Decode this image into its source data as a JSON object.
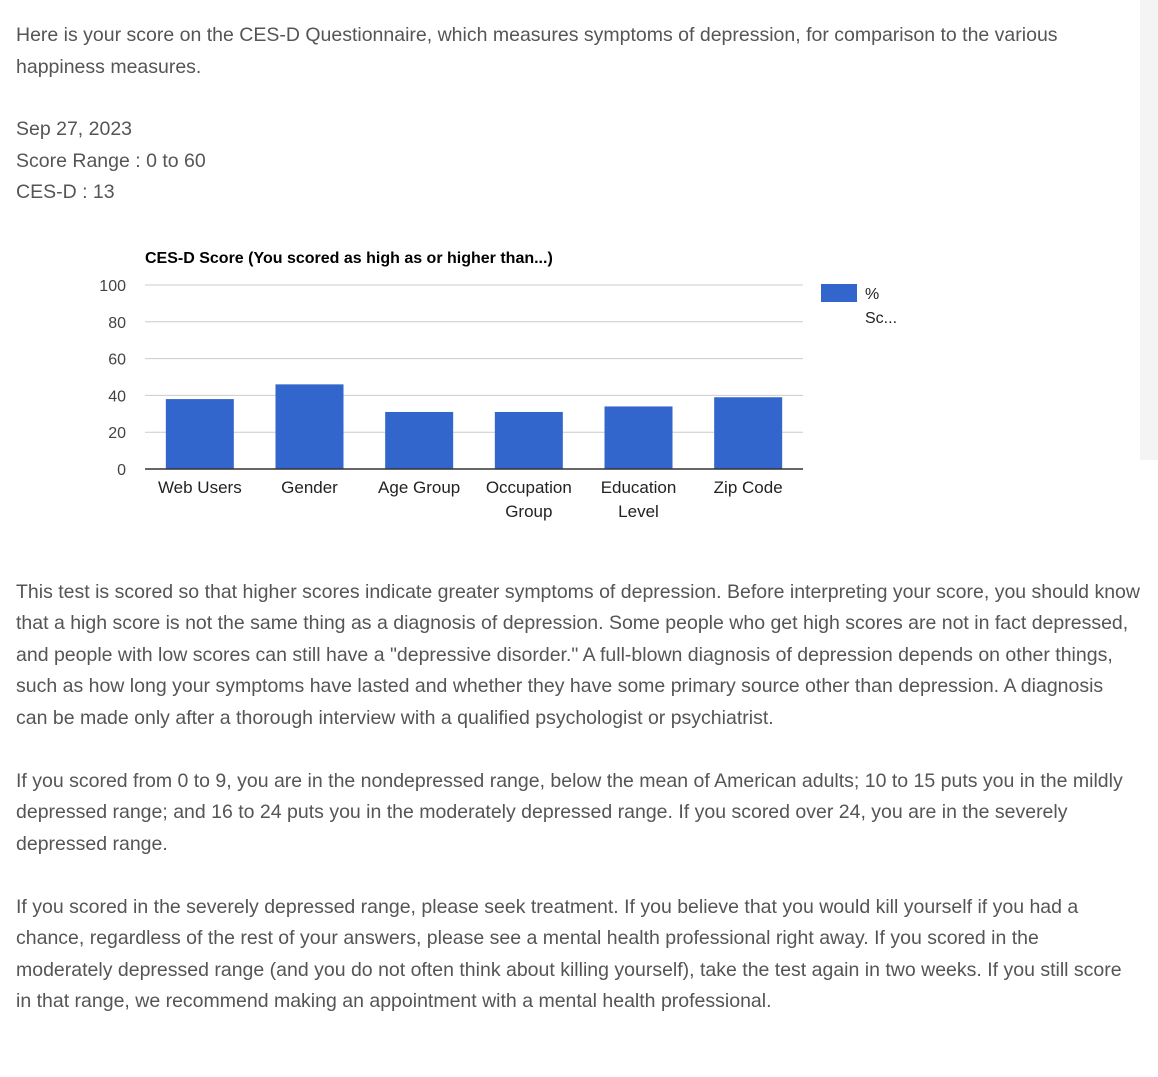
{
  "intro_text": "Here is your score on the CES-D Questionnaire, which measures symptoms of depression, for comparison to the various happiness measures.",
  "result": {
    "date": "Sep 27, 2023",
    "score_range": "Score Range : 0 to 60",
    "score": "CES-D : 13"
  },
  "chart_data": {
    "type": "bar",
    "title": "CES-D Score (You scored as high as or higher than...)",
    "categories": [
      "Web Users",
      "Gender",
      "Age Group",
      "Occupation Group",
      "Education Level",
      "Zip Code"
    ],
    "category_lines": [
      [
        "Web Users"
      ],
      [
        "Gender"
      ],
      [
        "Age Group"
      ],
      [
        "Occupation",
        "Group"
      ],
      [
        "Education",
        "Level"
      ],
      [
        "Zip Code"
      ]
    ],
    "series": [
      {
        "name": "% Sc...",
        "values": [
          38,
          46,
          31,
          31,
          34,
          39
        ]
      }
    ],
    "legend_lines": [
      "%",
      "Sc..."
    ],
    "legend_position": "right",
    "ylim": [
      0,
      100
    ],
    "yticks": [
      0,
      20,
      40,
      60,
      80,
      100
    ],
    "grid": true,
    "colors": {
      "bar": "#3366cc",
      "grid": "#cccccc",
      "axis": "#333333"
    }
  },
  "paragraphs": [
    "This test is scored so that higher scores indicate greater symptoms of depression. Before interpreting your score, you should know that a high score is not the same thing as a diagnosis of depression. Some people who get high scores are not in fact depressed, and people with low scores can still have a \"depressive disorder.\" A full-blown diagnosis of depression depends on other things, such as how long your symptoms have lasted and whether they have some primary source other than depression. A diagnosis can be made only after a thorough interview with a qualified psychologist or psychiatrist.",
    "If you scored from 0 to 9, you are in the nondepressed range, below the mean of American adults; 10 to 15 puts you in the mildly depressed range; and 16 to 24 puts you in the moderately depressed range. If you scored over 24, you are in the severely depressed range.",
    "If you scored in the severely depressed range, please seek treatment. If you believe that you would kill yourself if you had a chance, regardless of the rest of your answers, please see a mental health professional right away. If you scored in the moderately depressed range (and you do not often think about killing yourself), take the test again in two weeks. If you still score in that range, we recommend making an appointment with a mental health professional."
  ]
}
